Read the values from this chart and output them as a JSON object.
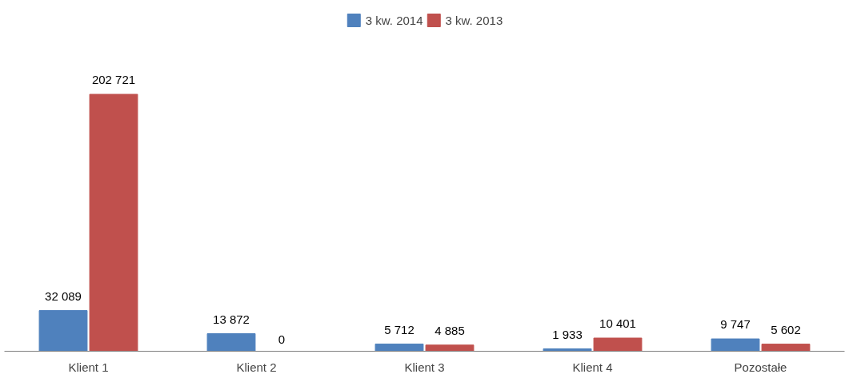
{
  "chart_data": {
    "type": "bar",
    "categories": [
      "Klient 1",
      "Klient 2",
      "Klient 3",
      "Klient 4",
      "Pozostałe"
    ],
    "series": [
      {
        "name": "3 kw. 2014",
        "color": "#4f81bd",
        "values": [
          32089,
          13872,
          5712,
          1933,
          9747
        ],
        "value_labels": [
          "32 089",
          "13 872",
          "5 712",
          "1 933",
          "9 747"
        ]
      },
      {
        "name": "3 kw. 2013",
        "color": "#c0504d",
        "values": [
          202721,
          0,
          4885,
          10401,
          5602
        ],
        "value_labels": [
          "202 721",
          "0",
          "4 885",
          "10 401",
          "5 602"
        ]
      }
    ],
    "legend": "top",
    "grid": false
  }
}
